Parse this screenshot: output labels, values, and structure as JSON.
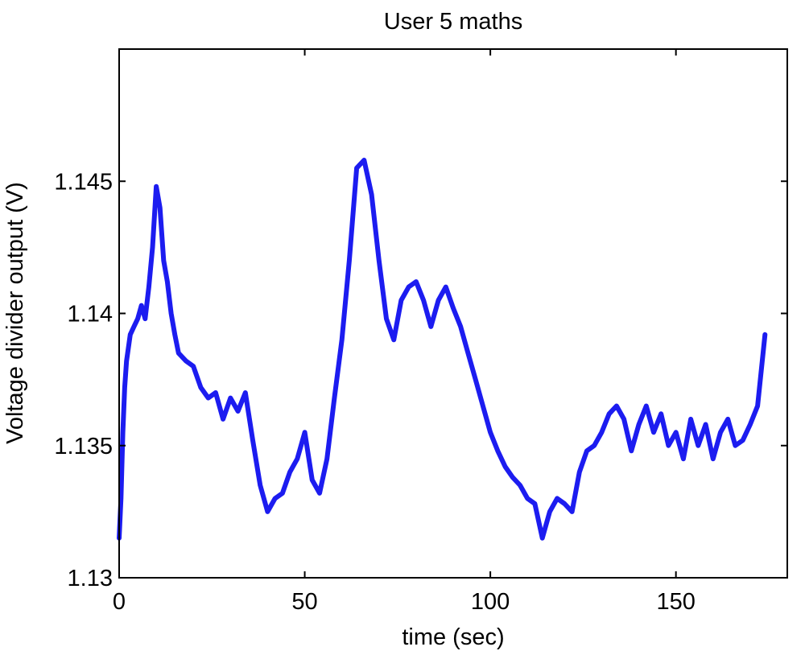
{
  "chart_data": {
    "type": "line",
    "title": "User 5 maths",
    "xlabel": "time (sec)",
    "ylabel": "Voltage divider output (V)",
    "xlim": [
      0,
      180
    ],
    "ylim": [
      1.13,
      1.15
    ],
    "x_ticks": [
      0,
      50,
      100,
      150
    ],
    "x_tick_labels": [
      "0",
      "50",
      "100",
      "150"
    ],
    "y_ticks": [
      1.13,
      1.135,
      1.14,
      1.145
    ],
    "y_tick_labels": [
      "1.13",
      "1.135",
      "1.14",
      "1.145"
    ],
    "grid": false,
    "legend": false,
    "line_color": "#1c1cf0",
    "series": [
      {
        "x": [
          0,
          0.5,
          1,
          1.5,
          2,
          3,
          4,
          5,
          6,
          7,
          8,
          9,
          10,
          11,
          12,
          13,
          14,
          15,
          16,
          18,
          20,
          22,
          24,
          26,
          28,
          30,
          32,
          34,
          36,
          38,
          40,
          42,
          44,
          46,
          48,
          50,
          52,
          54,
          56,
          58,
          60,
          62,
          64,
          66,
          68,
          70,
          72,
          74,
          76,
          78,
          80,
          82,
          84,
          86,
          88,
          90,
          92,
          94,
          96,
          98,
          100,
          102,
          104,
          106,
          108,
          110,
          112,
          114,
          116,
          118,
          120,
          122,
          124,
          126,
          128,
          130,
          132,
          134,
          136,
          138,
          140,
          142,
          144,
          146,
          148,
          150,
          152,
          154,
          156,
          158,
          160,
          162,
          164,
          166,
          168,
          170,
          172,
          174
        ],
        "y": [
          1.1315,
          1.133,
          1.1355,
          1.1372,
          1.1382,
          1.1392,
          1.1395,
          1.1398,
          1.1403,
          1.1398,
          1.141,
          1.1425,
          1.1448,
          1.144,
          1.142,
          1.1412,
          1.14,
          1.1392,
          1.1385,
          1.1382,
          1.138,
          1.1372,
          1.1368,
          1.137,
          1.136,
          1.1368,
          1.1363,
          1.137,
          1.1352,
          1.1335,
          1.1325,
          1.133,
          1.1332,
          1.134,
          1.1345,
          1.1355,
          1.1337,
          1.1332,
          1.1345,
          1.1368,
          1.139,
          1.142,
          1.1455,
          1.1458,
          1.1445,
          1.142,
          1.1398,
          1.139,
          1.1405,
          1.141,
          1.1412,
          1.1405,
          1.1395,
          1.1405,
          1.141,
          1.1402,
          1.1395,
          1.1385,
          1.1375,
          1.1365,
          1.1355,
          1.1348,
          1.1342,
          1.1338,
          1.1335,
          1.133,
          1.1328,
          1.1315,
          1.1325,
          1.133,
          1.1328,
          1.1325,
          1.134,
          1.1348,
          1.135,
          1.1355,
          1.1362,
          1.1365,
          1.136,
          1.1348,
          1.1358,
          1.1365,
          1.1355,
          1.1362,
          1.135,
          1.1355,
          1.1345,
          1.136,
          1.135,
          1.1358,
          1.1345,
          1.1355,
          1.136,
          1.135,
          1.1352,
          1.1358,
          1.1365,
          1.1392
        ]
      }
    ]
  }
}
